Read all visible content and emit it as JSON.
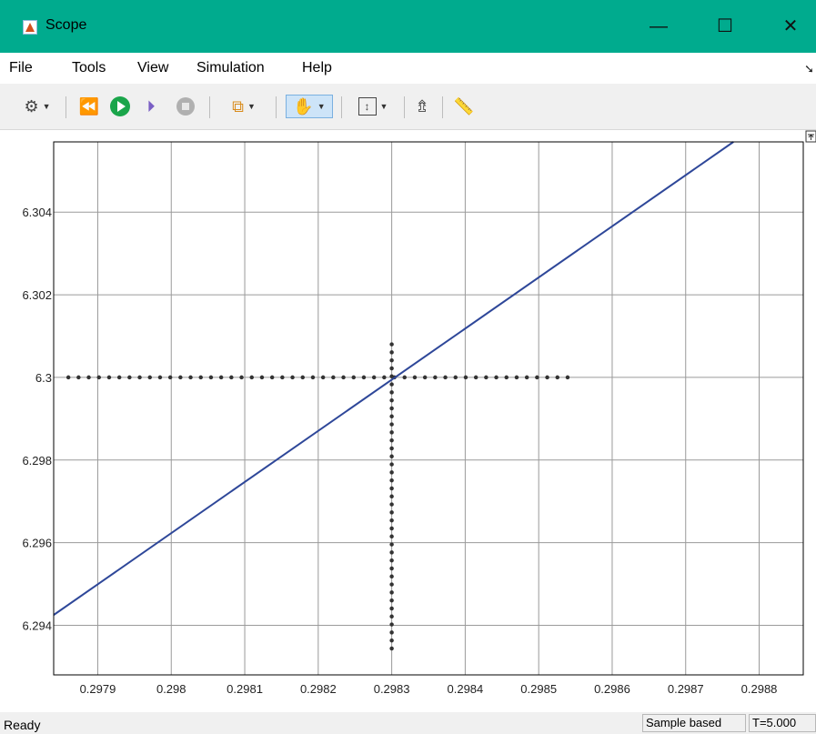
{
  "window": {
    "title": "Scope",
    "controls": {
      "minimize": "—",
      "maximize": "☐",
      "close": "✕"
    }
  },
  "menu": {
    "items": [
      "File",
      "Tools",
      "View",
      "Simulation",
      "Help"
    ]
  },
  "toolbar": {
    "icons": [
      "gear-icon",
      "step-back-icon",
      "run-icon",
      "step-forward-icon",
      "stop-icon",
      "signal-selector-icon",
      "pan-icon",
      "scale-axes-icon",
      "highlight-block-icon",
      "measurement-icon"
    ],
    "active": "pan-icon"
  },
  "chart_data": {
    "type": "line",
    "x_ticks": [
      "0.2979",
      "0.298",
      "0.2981",
      "0.2982",
      "0.2983",
      "0.2984",
      "0.2985",
      "0.2986",
      "0.2987",
      "0.2988"
    ],
    "x_tick_values": [
      0.2979,
      0.298,
      0.2981,
      0.2982,
      0.2983,
      0.2984,
      0.2985,
      0.2986,
      0.2987,
      0.2988
    ],
    "y_ticks": [
      "6.294",
      "6.296",
      "6.298",
      "6.3",
      "6.302",
      "6.304"
    ],
    "y_tick_values": [
      6.294,
      6.296,
      6.298,
      6.3,
      6.302,
      6.304
    ],
    "xlim": [
      0.29784,
      0.29886
    ],
    "ylim": [
      6.2928,
      6.3057
    ],
    "grid": true,
    "series": [
      {
        "color": "#2e4799",
        "x": [
          0.29784,
          0.298765
        ],
        "y": [
          6.29425,
          6.3057
        ]
      }
    ],
    "cursor": {
      "horizontal": {
        "y": 6.3,
        "x_from": 0.29786,
        "x_to": 0.298545
      },
      "vertical": {
        "x": 0.2983,
        "y_from": 6.2933,
        "y_to": 6.3008
      },
      "color": "#333333"
    }
  },
  "status": {
    "left": "Ready",
    "mode": "Sample based",
    "time": "T=5.000"
  }
}
